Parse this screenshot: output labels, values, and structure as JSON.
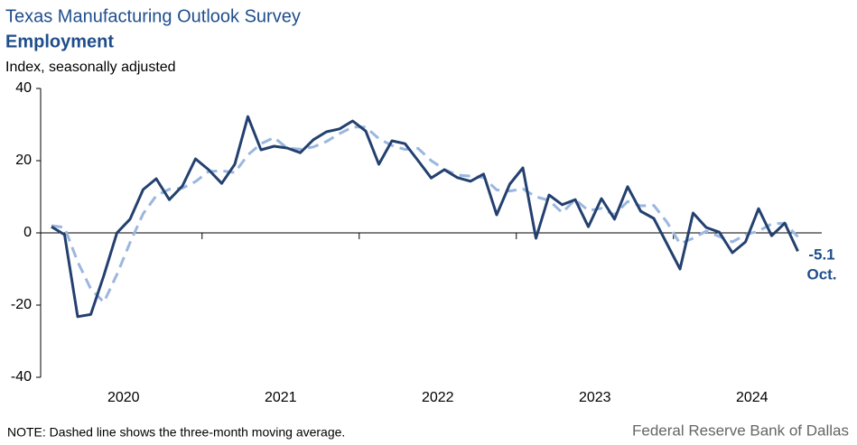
{
  "chart_data": {
    "type": "line",
    "title": "Texas Manufacturing Outlook Survey",
    "subtitle": "Employment",
    "ylabel": "Index, seasonally adjusted",
    "note": "NOTE: Dashed line shows the three-month  moving average.",
    "source": "Federal Reserve Bank of Dallas",
    "end_label": "Oct.",
    "categories": [
      null,
      null,
      null,
      null,
      null,
      null,
      "2020",
      null,
      null,
      null,
      null,
      null,
      null,
      null,
      null,
      null,
      null,
      null,
      "2021",
      null,
      null,
      null,
      null,
      null,
      null,
      null,
      null,
      null,
      null,
      null,
      "2022",
      null,
      null,
      null,
      null,
      null,
      null,
      null,
      null,
      null,
      null,
      null,
      "2023",
      null,
      null,
      null,
      null,
      null,
      null,
      null,
      null,
      null,
      null,
      null,
      "2024",
      null,
      null,
      null
    ],
    "series": [
      {
        "color": "#23406f",
        "dash": false,
        "values": [
          1.7,
          -0.5,
          -23.2,
          -22.6,
          -11.8,
          0,
          3.8,
          12,
          15,
          9.2,
          13,
          20.5,
          17.5,
          13.7,
          19,
          32.2,
          23,
          24,
          23.5,
          22.2,
          25.8,
          28,
          28.8,
          31,
          28.2,
          19,
          25.5,
          24.7,
          20,
          15.2,
          17.5,
          15.3,
          14.3,
          16.3,
          5,
          13.5,
          18,
          -1.5,
          10.5,
          7.8,
          9.2,
          1.7,
          9.5,
          3.8,
          12.8,
          6,
          4,
          -3,
          -10,
          5.5,
          1.5,
          0.2,
          -5.5,
          -2.5,
          6.7,
          -0.8,
          2.7,
          -5.1
        ]
      },
      {
        "color": "#9bb7df",
        "dash": true,
        "values": [
          2,
          1.5,
          -8,
          -15.5,
          -19.2,
          -11.5,
          -2.7,
          5.3,
          10.3,
          12.1,
          12.4,
          14.2,
          17,
          17.2,
          16.7,
          21.6,
          24.7,
          26.4,
          23.5,
          23.2,
          23.8,
          25.3,
          27.5,
          29.3,
          29.3,
          26.1,
          24.2,
          23.1,
          23.4,
          20,
          17.6,
          16,
          15.7,
          15.3,
          11.9,
          11.6,
          12.2,
          10,
          9,
          5.6,
          9.2,
          6.2,
          6.8,
          5,
          8.7,
          7.5,
          7.6,
          3,
          -3,
          -1.5,
          0.5,
          -1,
          -2.5,
          -0.5,
          0.5,
          2.5,
          2.7,
          -1.1
        ]
      }
    ],
    "ylim": [
      -40,
      40
    ],
    "yticks": [
      -40,
      -20,
      0,
      20,
      40
    ]
  }
}
